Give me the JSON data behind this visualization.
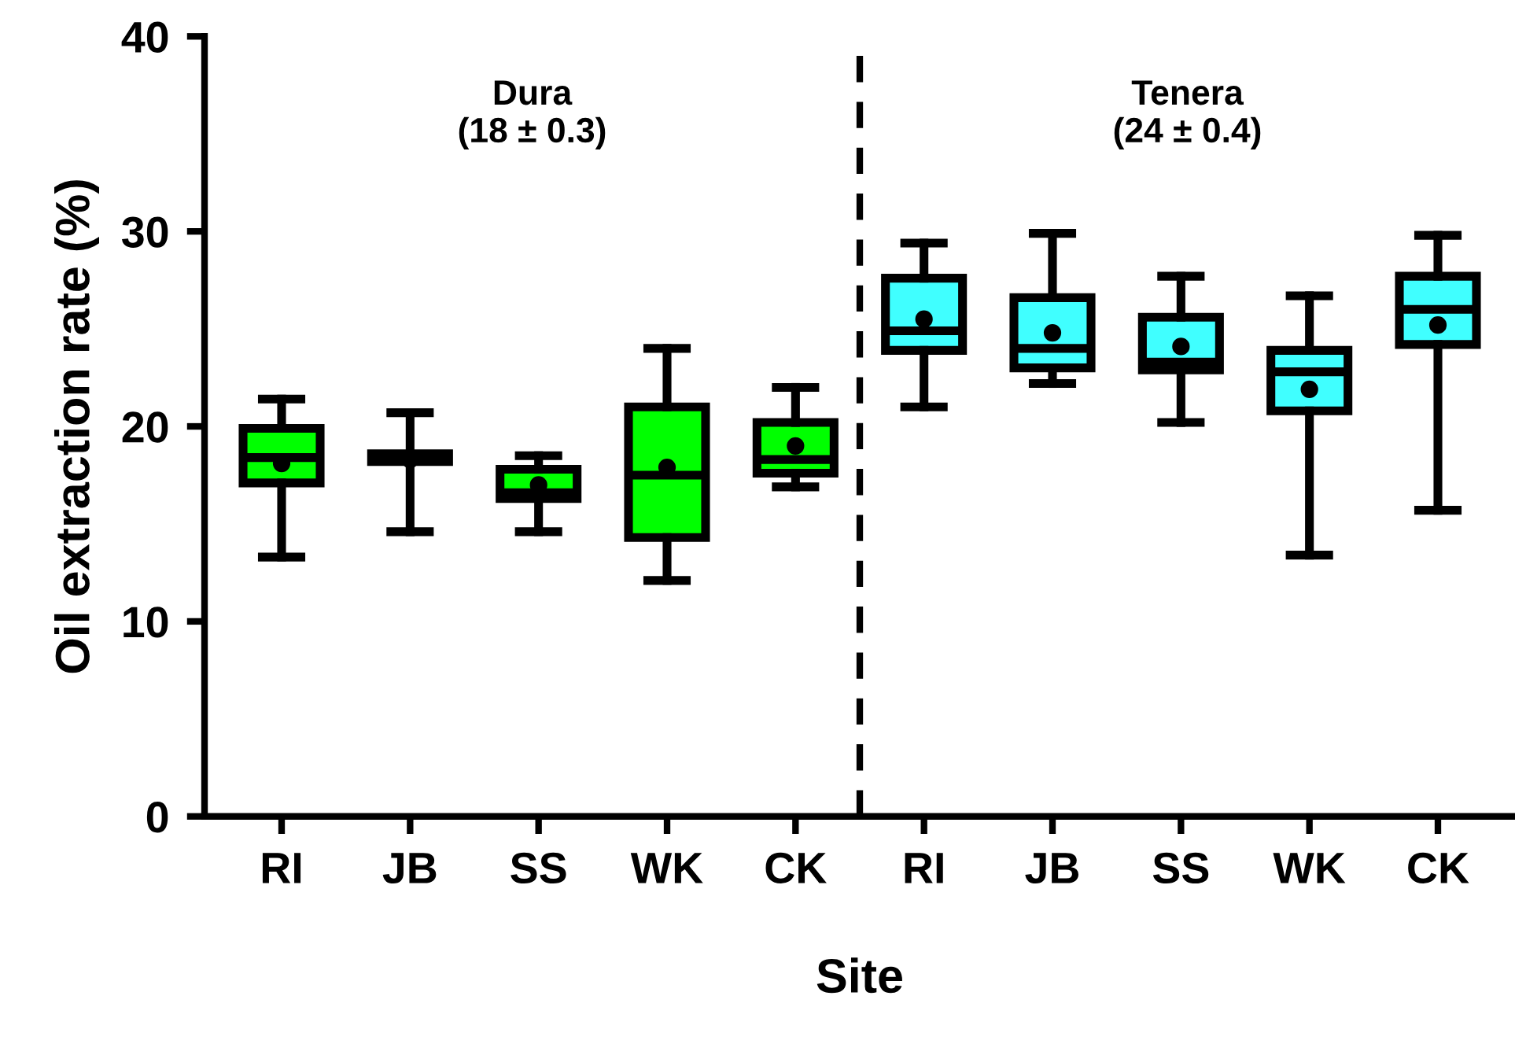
{
  "chart_data": {
    "type": "box",
    "xlabel": "Site",
    "ylabel": "Oil extraction rate (%)",
    "categories": [
      "RI",
      "JB",
      "SS",
      "WK",
      "CK",
      "RI",
      "JB",
      "SS",
      "WK",
      "CK"
    ],
    "colors": [
      "#00ff00",
      "#00ff00",
      "#00ff00",
      "#00ff00",
      "#00ff00",
      "#40ffff",
      "#40ffff",
      "#40ffff",
      "#40ffff",
      "#40ffff"
    ],
    "boxes": [
      {
        "low": 13.3,
        "q1": 17.1,
        "median": 18.4,
        "q3": 19.9,
        "high": 21.4,
        "mean": 18.1
      },
      {
        "low": 14.6,
        "q1": 18.2,
        "median": 18.4,
        "q3": 18.6,
        "high": 20.7,
        "mean": 18.3
      },
      {
        "low": 14.6,
        "q1": 16.3,
        "median": 16.6,
        "q3": 17.8,
        "high": 18.5,
        "mean": 17.0
      },
      {
        "low": 12.1,
        "q1": 14.3,
        "median": 17.5,
        "q3": 21.0,
        "high": 24.0,
        "mean": 17.9
      },
      {
        "low": 16.9,
        "q1": 17.6,
        "median": 18.3,
        "q3": 20.2,
        "high": 22.0,
        "mean": 19.0
      },
      {
        "low": 21.0,
        "q1": 23.9,
        "median": 24.9,
        "q3": 27.6,
        "high": 29.4,
        "mean": 25.5
      },
      {
        "low": 22.2,
        "q1": 23.0,
        "median": 24.0,
        "q3": 26.6,
        "high": 29.9,
        "mean": 24.8
      },
      {
        "low": 20.2,
        "q1": 22.9,
        "median": 23.3,
        "q3": 25.6,
        "high": 27.7,
        "mean": 24.1
      },
      {
        "low": 13.4,
        "q1": 20.8,
        "median": 22.8,
        "q3": 23.9,
        "high": 26.7,
        "mean": 21.9
      },
      {
        "low": 15.7,
        "q1": 24.2,
        "median": 26.0,
        "q3": 27.7,
        "high": 29.8,
        "mean": 25.2
      }
    ],
    "ylim": [
      0,
      40
    ],
    "yticks": [
      0,
      10,
      20,
      30,
      40
    ],
    "grid": false,
    "annotations": [
      "Dura\n(18 ± 0.3)",
      "Tenera\n(24 ± 0.4)"
    ]
  }
}
